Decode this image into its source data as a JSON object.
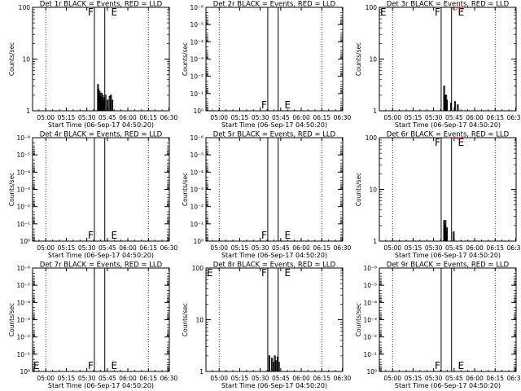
{
  "chart_data": [
    {
      "type": "line",
      "title": "Det 1r BLACK = Events, RED = LLD",
      "xlabel": "Start Time (06-Sep-17 04:50:20)",
      "ylabel": "Counts/sec",
      "x_ticks": [
        "05:00",
        "05:15",
        "05:30",
        "05:45",
        "06:00",
        "06:15",
        "06:30"
      ],
      "y_scale": "log",
      "y_ticks": [
        "1",
        "10",
        "100"
      ],
      "ylim": [
        1,
        100
      ],
      "letters": [
        "F",
        "E"
      ],
      "series": [
        {
          "color": "#000000",
          "x": [
            47.5,
            47.8,
            48.2,
            48.6,
            49.0,
            49.5,
            50.0,
            50.5,
            51.0,
            51.5,
            52.0,
            53.0,
            54.5,
            56.0,
            57.0,
            58.0
          ],
          "y": [
            3.2,
            2.6,
            2.2,
            2.4,
            2.0,
            1.8,
            2.2,
            1.5,
            2.0,
            1.6,
            1.8,
            2.0,
            1.6,
            1.9,
            2.0,
            1.6
          ]
        },
        {
          "color": "#ff0000",
          "x": [],
          "y": []
        }
      ]
    },
    {
      "type": "line",
      "title": "Det 2r BLACK = Events, RED = LLD",
      "xlabel": "Start Time (06-Sep-17 04:50:20)",
      "ylabel": "Counts/sec",
      "x_ticks": [
        "05:00",
        "05:15",
        "05:30",
        "05:45",
        "06:00",
        "06:15",
        "06:30"
      ],
      "y_scale": "log",
      "y_ticks": [
        "10⁰",
        "10⁻¹",
        "10⁻²",
        "10⁻³",
        "10⁻⁴",
        "10⁻⁵",
        "10⁻⁶"
      ],
      "ylim": [
        1,
        1e-06
      ],
      "letters": [
        "F",
        "E"
      ],
      "series": []
    },
    {
      "type": "line",
      "title": "Det 3r BLACK = Events, RED = LLD",
      "xlabel": "Start Time (06-Sep-17 04:50:20)",
      "ylabel": "Counts/sec",
      "x_ticks": [
        "05:00",
        "05:15",
        "05:30",
        "05:45",
        "06:00",
        "06:15",
        "06:30"
      ],
      "y_scale": "log",
      "y_ticks": [
        "1",
        "10",
        "100"
      ],
      "ylim": [
        1,
        100
      ],
      "letters": [
        "F",
        "E"
      ],
      "series": [
        {
          "color": "#000000",
          "x": [
            47.0,
            47.5,
            48.0,
            48.5,
            49.0,
            52.0,
            55.0,
            57.0
          ],
          "y": [
            3.0,
            2.0,
            1.5,
            2.0,
            1.6,
            1.4,
            1.5,
            1.3
          ]
        },
        {
          "color": "#ff0000",
          "x": [
            53,
            54,
            55,
            56,
            57,
            58,
            59,
            60,
            61,
            62,
            63
          ],
          "y": [
            100,
            92,
            88,
            90,
            95,
            100,
            94,
            88,
            90,
            96,
            100
          ]
        }
      ]
    },
    {
      "type": "line",
      "title": "Det 4r BLACK = Events, RED = LLD",
      "xlabel": "Start Time (06-Sep-17 04:50:20)",
      "ylabel": "Counts/sec",
      "x_ticks": [
        "05:00",
        "05:15",
        "05:30",
        "05:45",
        "06:00",
        "06:15",
        "06:30"
      ],
      "y_scale": "log",
      "y_ticks": [
        "10⁰",
        "10⁻¹",
        "10⁻²",
        "10⁻³",
        "10⁻⁴",
        "10⁻⁵",
        "10⁻⁶"
      ],
      "ylim": [
        1,
        1e-06
      ],
      "letters": [
        "F",
        "E"
      ],
      "series": []
    },
    {
      "type": "line",
      "title": "Det 5r BLACK = Events, RED = LLD",
      "xlabel": "Start Time (06-Sep-17 04:50:20)",
      "ylabel": "Counts/sec",
      "x_ticks": [
        "05:00",
        "05:15",
        "05:30",
        "05:45",
        "06:00",
        "06:15",
        "06:30"
      ],
      "y_scale": "log",
      "y_ticks": [
        "10⁰",
        "10⁻¹",
        "10⁻²",
        "10⁻³",
        "10⁻⁴",
        "10⁻⁵",
        "10⁻⁶"
      ],
      "ylim": [
        1,
        1e-06
      ],
      "letters": [
        "F",
        "E"
      ],
      "series": []
    },
    {
      "type": "line",
      "title": "Det 6r BLACK = Events, RED = LLD",
      "xlabel": "Start Time (06-Sep-17 04:50:20)",
      "ylabel": "Counts/sec",
      "x_ticks": [
        "05:00",
        "05:15",
        "05:30",
        "05:45",
        "06:00",
        "06:15",
        "06:30"
      ],
      "y_scale": "log",
      "y_ticks": [
        "1",
        "10",
        "100"
      ],
      "ylim": [
        1,
        100
      ],
      "letters": [
        "F",
        "E"
      ],
      "series": [
        {
          "color": "#000000",
          "x": [
            47.0,
            47.5,
            48.0,
            48.5,
            49.0,
            54.0
          ],
          "y": [
            2.5,
            2.0,
            2.5,
            1.5,
            1.8,
            1.5
          ]
        },
        {
          "color": "#ff0000",
          "x": [
            55,
            56,
            57,
            58,
            59,
            60,
            61,
            62
          ],
          "y": [
            100,
            96,
            94,
            96,
            100,
            97,
            95,
            100
          ]
        }
      ]
    },
    {
      "type": "line",
      "title": "Det 7r BLACK = Events, RED = LLD",
      "xlabel": "Start Time (06-Sep-17 04:50:20)",
      "ylabel": "Counts/sec",
      "x_ticks": [
        "05:00",
        "05:15",
        "05:30",
        "05:45",
        "06:00",
        "06:15",
        "06:30"
      ],
      "y_scale": "log",
      "y_ticks": [
        "10⁰",
        "10⁻¹",
        "10⁻²",
        "10⁻³",
        "10⁻⁴",
        "10⁻⁵",
        "10⁻⁶"
      ],
      "ylim": [
        1,
        1e-06
      ],
      "letters": [
        "F",
        "E"
      ],
      "series": []
    },
    {
      "type": "line",
      "title": "Det 8r BLACK = Events, RED = LLD",
      "xlabel": "Start Time (06-Sep-17 04:50:20)",
      "ylabel": "Counts/sec",
      "x_ticks": [
        "05:00",
        "05:15",
        "05:30",
        "05:45",
        "06:00",
        "06:15",
        "06:30"
      ],
      "y_scale": "log",
      "y_ticks": [
        "1",
        "10",
        "100"
      ],
      "ylim": [
        1,
        100
      ],
      "letters": [
        "F",
        "E"
      ],
      "series": [
        {
          "color": "#000000",
          "x": [
            46.0,
            48.0,
            49.0,
            50.0,
            51.0,
            52.0,
            53.0
          ],
          "y": [
            2.0,
            1.8,
            1.5,
            2.0,
            1.6,
            1.9,
            1.5
          ]
        },
        {
          "color": "#ff0000",
          "x": [],
          "y": []
        }
      ]
    },
    {
      "type": "line",
      "title": "Det 9r BLACK = Events, RED = LLD",
      "xlabel": "Start Time (06-Sep-17 04:50:20)",
      "ylabel": "Counts/sec",
      "x_ticks": [
        "05:00",
        "05:15",
        "05:30",
        "05:45",
        "06:00",
        "06:15",
        "06:30"
      ],
      "y_scale": "log",
      "y_ticks": [
        "10⁰",
        "10⁻¹",
        "10⁻²",
        "10⁻³",
        "10⁻⁴",
        "10⁻⁵",
        "10⁻⁶"
      ],
      "ylim": [
        1,
        1e-06
      ],
      "letters": [
        "F",
        "E"
      ],
      "series": []
    }
  ]
}
